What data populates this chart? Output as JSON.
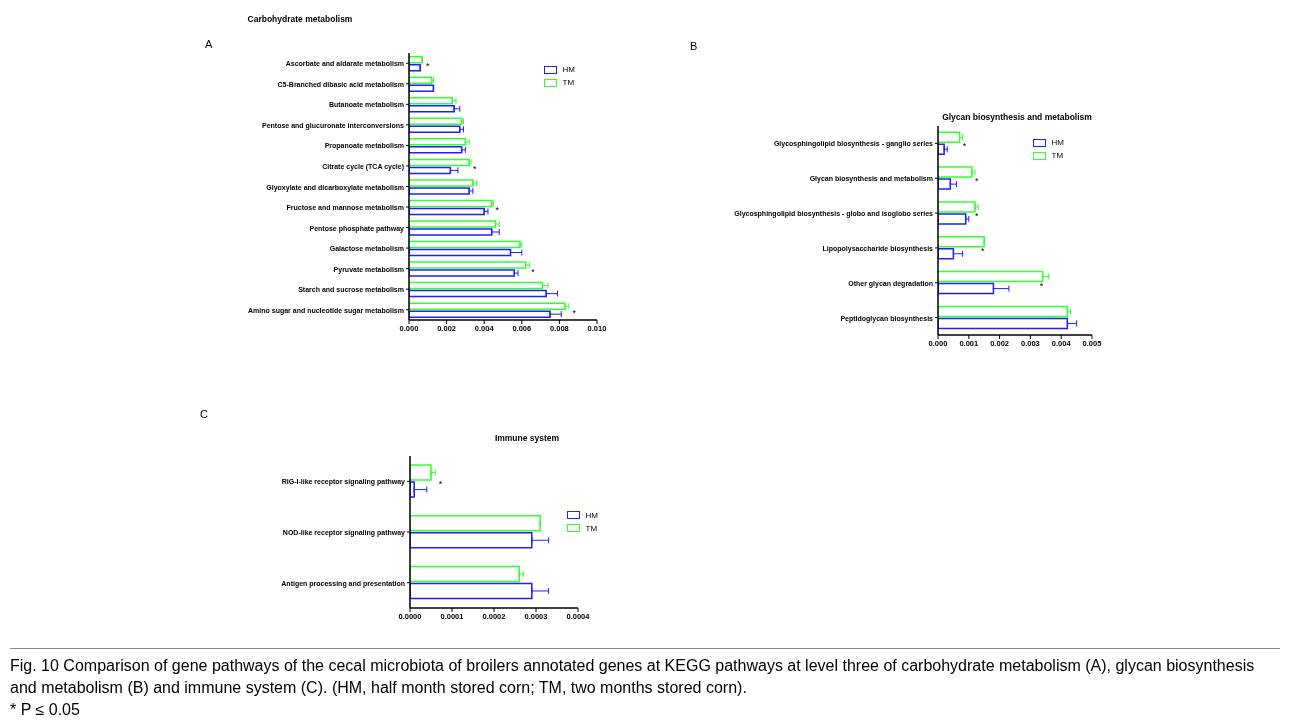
{
  "chart_data": [
    {
      "type": "bar",
      "orientation": "horizontal",
      "title": "Carbohydrate metabolism",
      "legend": "top right",
      "categories": [
        "Ascorbate and aldarate metabolism",
        "C5-Branched dibasic acid metabolism",
        "Butanoate metabolism",
        "Pentose and glucuronate interconversions",
        "Propanoate metabolism",
        "Citrate cycle (TCA cycle)",
        "Glyoxylate and dicarboxylate metabolism",
        "Fructose and mannose metabolism",
        "Pentose phosphate pathway",
        "Galactose metabolism",
        "Pyruvate metabolism",
        "Starch and sucrose metabolism",
        "Amino sugar and nucleotide sugar metabolism"
      ],
      "series": [
        {
          "name": "HM",
          "color": "#1f1fff",
          "values": [
            0.0006,
            0.0013,
            0.0024,
            0.0027,
            0.0028,
            0.0022,
            0.0032,
            0.004,
            0.0044,
            0.0054,
            0.0056,
            0.0073,
            0.0075
          ],
          "errors": [
            null,
            null,
            [
              0.0024,
              0.0027
            ],
            [
              0.0027,
              0.0029
            ],
            [
              0.0028,
              0.003
            ],
            [
              0.0022,
              0.0026
            ],
            [
              0.0032,
              0.0034
            ],
            [
              0.004,
              0.0042
            ],
            [
              0.0044,
              0.0048
            ],
            [
              0.0054,
              0.006
            ],
            [
              0.0056,
              0.0058
            ],
            [
              0.0073,
              0.0079
            ],
            [
              0.0075,
              0.0081
            ]
          ]
        },
        {
          "name": "TM",
          "color": "#33ff33",
          "values": [
            0.0007,
            0.0012,
            0.0023,
            0.0028,
            0.003,
            0.0032,
            0.0034,
            0.0044,
            0.0046,
            0.0059,
            0.0062,
            0.0071,
            0.0083
          ],
          "errors": [
            null,
            [
              0.0012,
              0.0013
            ],
            [
              0.0023,
              0.0025
            ],
            [
              0.0028,
              0.0029
            ],
            [
              0.003,
              0.0032
            ],
            [
              0.0032,
              0.0033
            ],
            [
              0.0034,
              0.0036
            ],
            [
              0.0044,
              0.0045
            ],
            [
              0.0046,
              0.0048
            ],
            [
              0.0059,
              0.006
            ],
            [
              0.0062,
              0.0064
            ],
            [
              0.0071,
              0.0074
            ],
            [
              0.0083,
              0.0085
            ]
          ]
        }
      ],
      "xlim": [
        0,
        0.01
      ],
      "xticks": [
        {
          "value": 0,
          "label": "0.000"
        },
        {
          "value": 0.002,
          "label": "0.002"
        },
        {
          "value": 0.004,
          "label": "0.004"
        },
        {
          "value": 0.006,
          "label": "0.006"
        },
        {
          "value": 0.008,
          "label": "0.008"
        },
        {
          "value": 0.01,
          "label": "0.010"
        }
      ],
      "annotations": [
        "A",
        {
          "text": "*",
          "x": 0.0009,
          "y": "Ascorbate and aldarate metabolism"
        },
        {
          "text": "*",
          "x": 0.0034,
          "y": "Citrate cycle (TCA cycle)"
        },
        {
          "text": "*",
          "x": 0.0046,
          "y": "Fructose and mannose metabolism"
        },
        {
          "text": "*",
          "x": 0.0065,
          "y": "Pyruvate metabolism"
        },
        {
          "text": "*",
          "x": 0.0087,
          "y": "Amino sugar and nucleotide sugar metabolism"
        }
      ]
    },
    {
      "type": "bar",
      "orientation": "horizontal",
      "title": "Glycan biosynthesis and metabolism",
      "legend": "top right",
      "categories": [
        "Glycosphingolipid biosynthesis - ganglio series",
        "Glycan biosynthesis and metabolism",
        "Glycosphingolipid biosynthesis - globo and isoglobo series",
        "Lipopolysaccharide biosynthesis",
        "Other glycan degradation",
        "Peptidoglycan biosynthesis"
      ],
      "series": [
        {
          "name": "HM",
          "color": "#1f1fff",
          "values": [
            0.0002,
            0.0004,
            0.0009,
            0.0005,
            0.0018,
            0.0042
          ],
          "errors": [
            [
              0.0002,
              0.0003
            ],
            [
              0.0004,
              0.0006
            ],
            [
              0.0009,
              0.001
            ],
            [
              0.0005,
              0.0008
            ],
            [
              0.0018,
              0.0023
            ],
            [
              0.0042,
              0.0045
            ]
          ]
        },
        {
          "name": "TM",
          "color": "#33ff33",
          "values": [
            0.0007,
            0.0011,
            0.0012,
            0.0015,
            0.0034,
            0.0042
          ],
          "errors": [
            [
              0.0007,
              0.0008
            ],
            [
              0.0011,
              0.0012
            ],
            [
              0.0012,
              0.0013
            ],
            [
              0.0015,
              0.0015
            ],
            [
              0.0034,
              0.0036
            ],
            [
              0.0042,
              0.0043
            ]
          ]
        }
      ],
      "xlim": [
        0,
        0.005
      ],
      "xticks": [
        {
          "value": 0,
          "label": "0.000"
        },
        {
          "value": 0.001,
          "label": "0.001"
        },
        {
          "value": 0.002,
          "label": "0.002"
        },
        {
          "value": 0.003,
          "label": "0.003"
        },
        {
          "value": 0.004,
          "label": "0.004"
        },
        {
          "value": 0.005,
          "label": "0.005"
        }
      ],
      "annotations": [
        "B",
        {
          "text": "*",
          "x": 0.0008,
          "y": "Glycosphingolipid biosynthesis - ganglio series"
        },
        {
          "text": "*",
          "x": 0.0012,
          "y": "Glycan biosynthesis and metabolism"
        },
        {
          "text": "*",
          "x": 0.0012,
          "y": "Glycosphingolipid biosynthesis - globo and isoglobo series"
        },
        {
          "text": "*",
          "x": 0.0014,
          "y": "Lipopolysaccharide biosynthesis"
        },
        {
          "text": "*",
          "x": 0.0033,
          "y": "Other glycan degradation"
        }
      ]
    },
    {
      "type": "bar",
      "orientation": "horizontal",
      "title": "Immune system",
      "legend": "right",
      "categories": [
        "RIG-I-like receptor signaling pathway",
        "NOD-like receptor signaling pathway",
        "Antigen processing and presentation"
      ],
      "series": [
        {
          "name": "HM",
          "color": "#1f1fff",
          "values": [
            1e-05,
            0.00029,
            0.00029
          ],
          "errors": [
            [
              1e-05,
              4e-05
            ],
            [
              0.00029,
              0.00033
            ],
            [
              0.00029,
              0.00033
            ]
          ]
        },
        {
          "name": "TM",
          "color": "#33ff33",
          "values": [
            5e-05,
            0.00031,
            0.00026
          ],
          "errors": [
            [
              5e-05,
              6e-05
            ],
            [
              0.00031,
              0.00031
            ],
            [
              0.00026,
              0.00027
            ]
          ]
        }
      ],
      "xlim": [
        0,
        0.0004
      ],
      "xticks": [
        {
          "value": 0,
          "label": "0.0000"
        },
        {
          "value": 0.0001,
          "label": "0.0001"
        },
        {
          "value": 0.0002,
          "label": "0.0002"
        },
        {
          "value": 0.0003,
          "label": "0.0003"
        },
        {
          "value": 0.0004,
          "label": "0.0004"
        }
      ],
      "annotations": [
        "C",
        {
          "text": "*",
          "x": 4e-05,
          "y": "RIG-I-like receptor signaling pathway"
        },
        "Fig. 10 Comparison of gene pathways of the cecal microbiota of broilers annotated genes at KEGG pathways at level three of carbohydrate metabolism (A), glycan biosynthesis and metabolism (B) and immune system (C). (HM, half month stored corn; TM, two months stored corn).",
        "* P ≤ 0.05"
      ]
    }
  ]
}
